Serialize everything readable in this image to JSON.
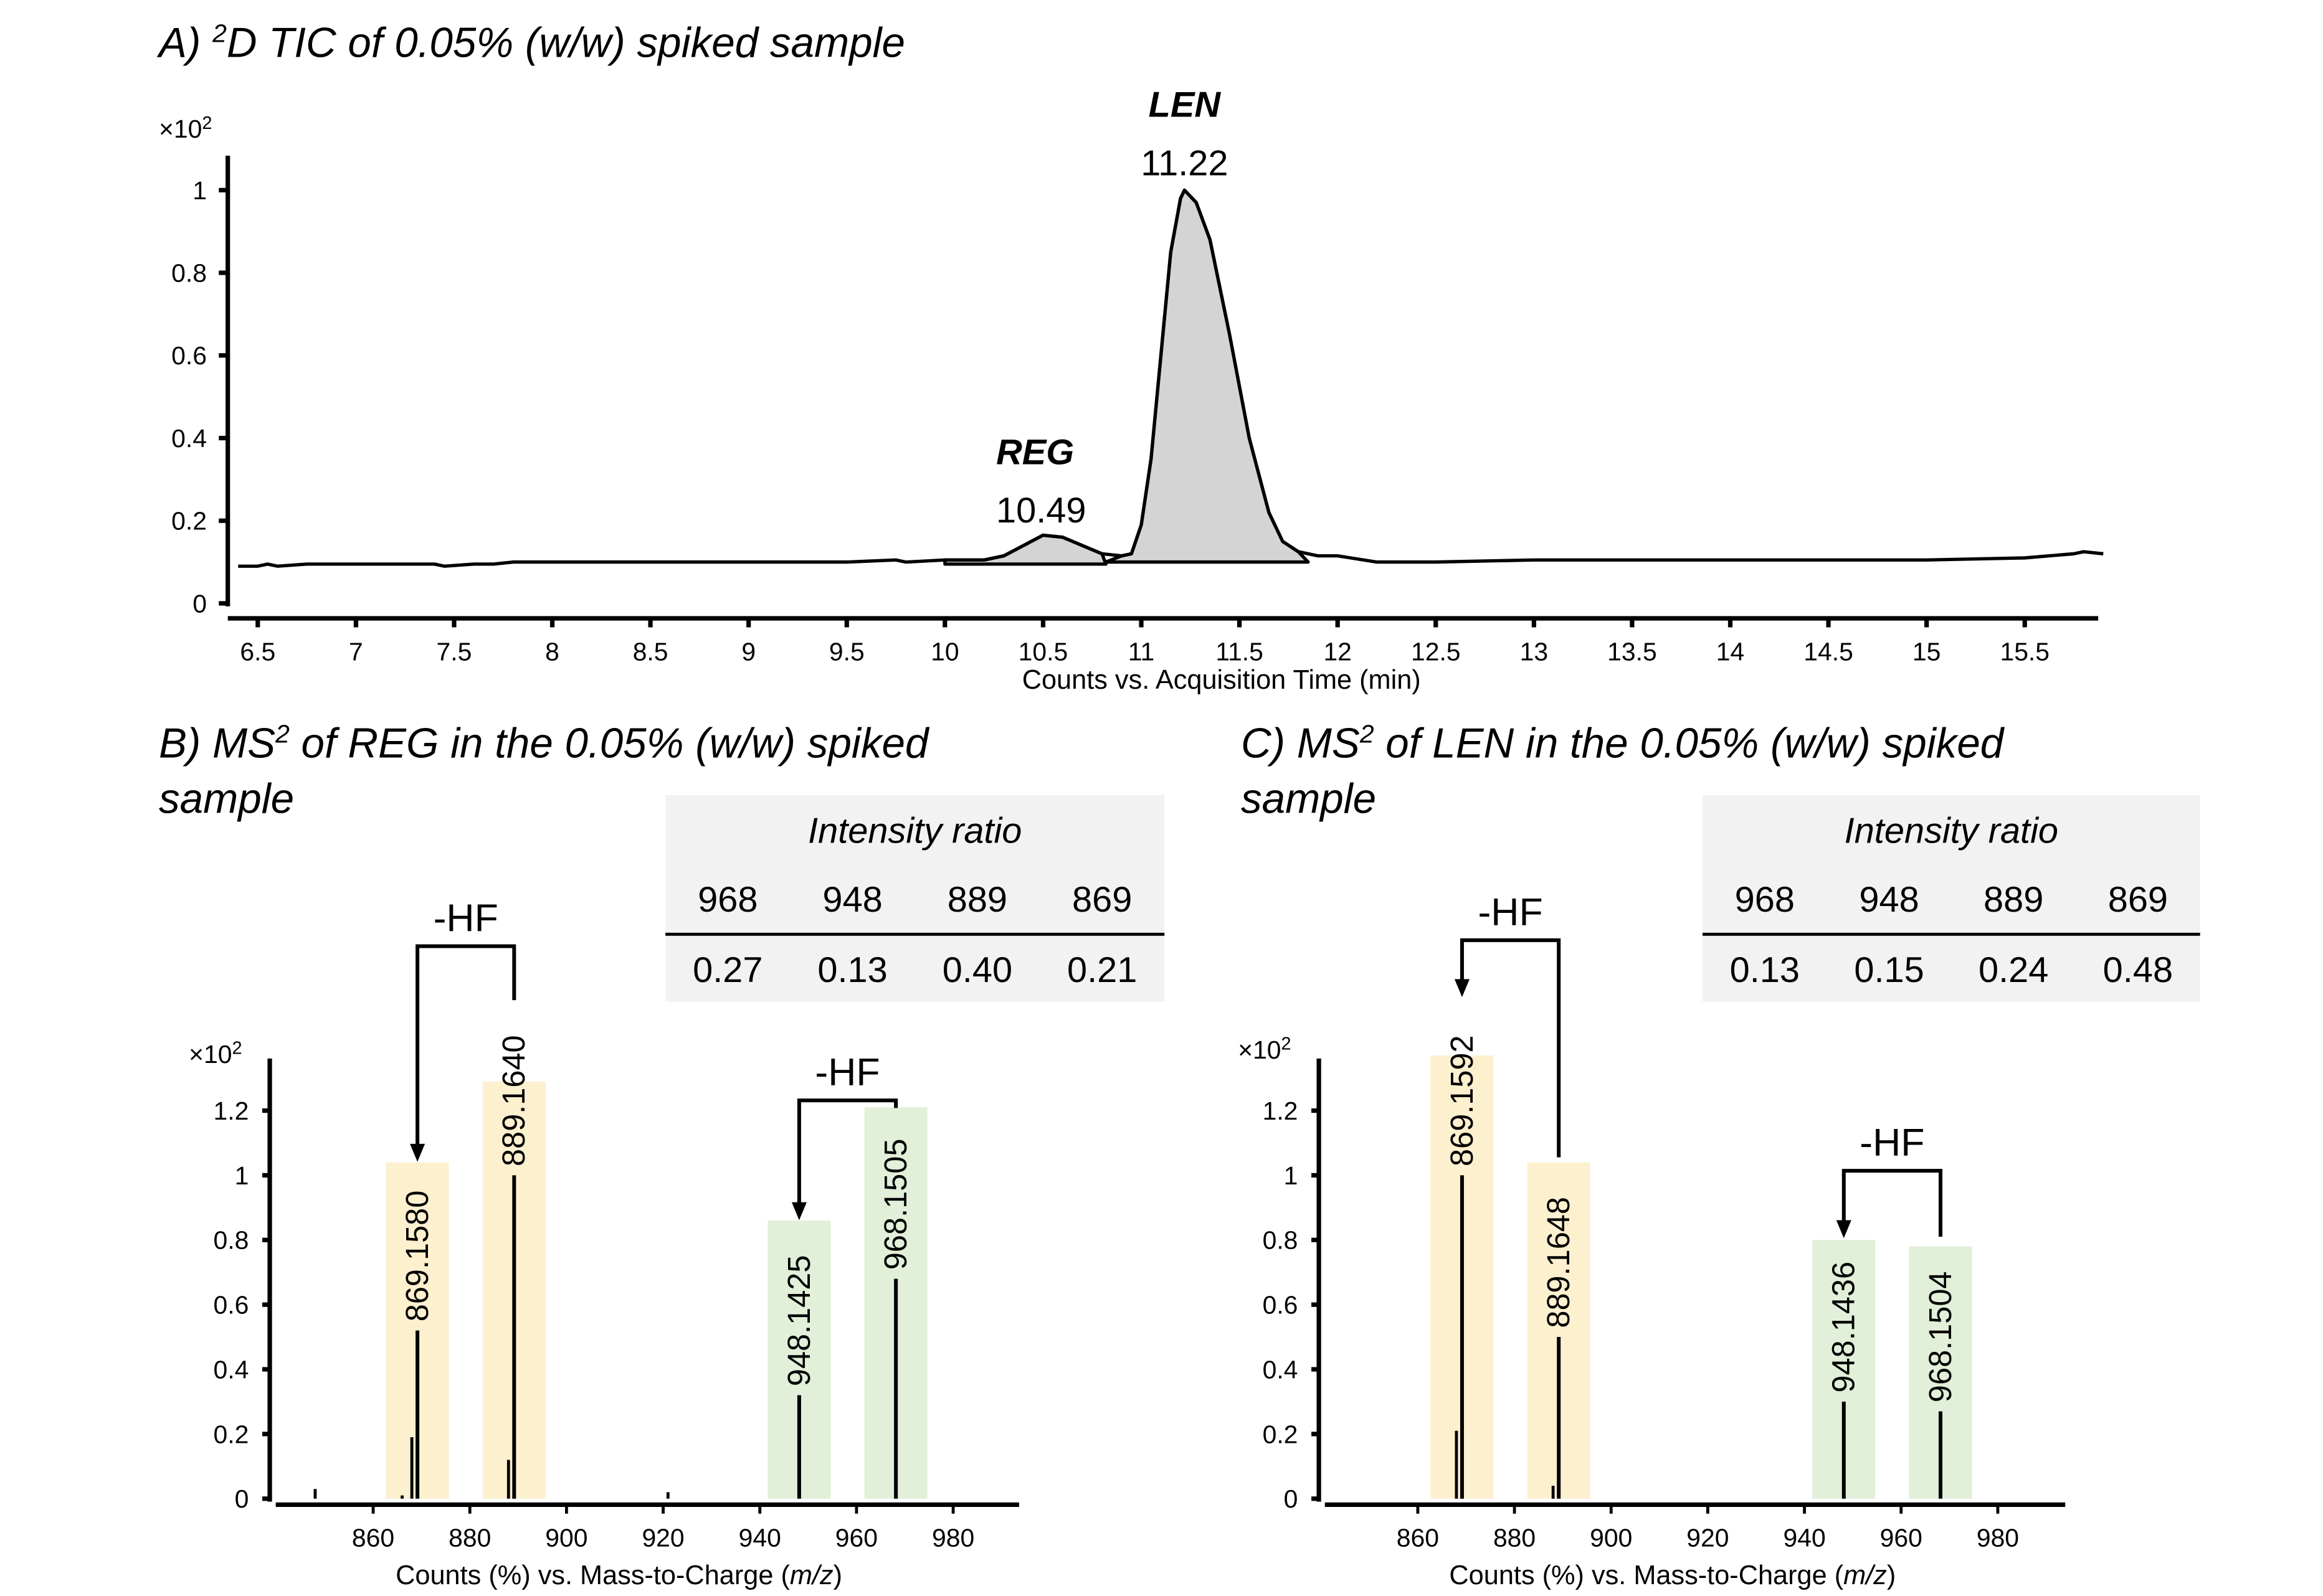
{
  "chart_data": [
    {
      "id": "A",
      "type": "line",
      "title_prefix": "A) ",
      "title_sup": "2",
      "title_rest": "D TIC of 0.05% (w/w) spiked sample",
      "xlabel": "Counts vs. Acquisition Time (min)",
      "ylabel_multiplier": "×10",
      "ylabel_multiplier_exp": "2",
      "xlim": [
        6.4,
        15.9
      ],
      "ylim": [
        0,
        1.05
      ],
      "xticks": [
        "6.5",
        "7",
        "7.5",
        "8",
        "8.5",
        "9",
        "9.5",
        "10",
        "10.5",
        "11",
        "11.5",
        "12",
        "12.5",
        "13",
        "13.5",
        "14",
        "14.5",
        "15",
        "15.5"
      ],
      "yticks": [
        "0",
        "0.2",
        "0.4",
        "0.6",
        "0.8",
        "1"
      ],
      "grid": false,
      "trace": {
        "x": [
          6.4,
          6.5,
          6.55,
          6.6,
          6.75,
          7.0,
          7.4,
          7.45,
          7.6,
          7.7,
          7.8,
          8.0,
          8.5,
          8.9,
          9.0,
          9.2,
          9.5,
          9.75,
          9.8,
          10.0,
          10.2,
          10.3,
          10.4,
          10.5,
          10.6,
          10.7,
          10.8,
          10.9,
          10.95,
          11.0,
          11.05,
          11.1,
          11.15,
          11.2,
          11.22,
          11.28,
          11.35,
          11.45,
          11.55,
          11.65,
          11.72,
          11.8,
          11.9,
          12.0,
          12.2,
          12.5,
          13.0,
          13.5,
          14.0,
          14.5,
          15.0,
          15.5,
          15.75,
          15.8,
          15.9
        ],
        "y": [
          0.09,
          0.09,
          0.095,
          0.09,
          0.095,
          0.095,
          0.095,
          0.09,
          0.095,
          0.095,
          0.1,
          0.1,
          0.1,
          0.1,
          0.1,
          0.1,
          0.1,
          0.105,
          0.1,
          0.105,
          0.105,
          0.115,
          0.14,
          0.165,
          0.16,
          0.14,
          0.12,
          0.115,
          0.12,
          0.19,
          0.35,
          0.6,
          0.85,
          0.98,
          1.0,
          0.97,
          0.88,
          0.65,
          0.4,
          0.22,
          0.15,
          0.125,
          0.115,
          0.115,
          0.1,
          0.1,
          0.105,
          0.105,
          0.105,
          0.105,
          0.105,
          0.11,
          0.12,
          0.125,
          0.12
        ]
      },
      "peaks": [
        {
          "name": "REG",
          "rt": "10.49",
          "x": 10.49,
          "start": 10.0,
          "end": 10.82,
          "base": 0.095,
          "color": "#d4d4d4"
        },
        {
          "name": "LEN",
          "rt": "11.22",
          "x": 11.22,
          "start": 10.82,
          "end": 11.85,
          "base": 0.1,
          "color": "#d4d4d4"
        }
      ]
    },
    {
      "id": "B",
      "type": "bar",
      "title_prefix": "B) MS",
      "title_sup": "2",
      "title_rest": " of REG in the 0.05% (w/w) spiked",
      "title_line2": "sample",
      "xlabel_pre": "Counts (%) vs. Mass-to-Charge (",
      "xlabel_it": "m/z",
      "xlabel_post": ")",
      "ylabel_multiplier": "×10",
      "ylabel_multiplier_exp": "2",
      "xlim": [
        840,
        995
      ],
      "ylim": [
        0,
        1.3
      ],
      "xticks": [
        "860",
        "880",
        "900",
        "920",
        "940",
        "960",
        "980"
      ],
      "yticks": [
        "0",
        "0.2",
        "0.4",
        "0.6",
        "0.8",
        "1",
        "1.2"
      ],
      "peaks": [
        {
          "mz": 848.0,
          "y": 0.03
        },
        {
          "mz": 866.0,
          "y": 0.01
        },
        {
          "mz": 868.0,
          "y": 0.19
        },
        {
          "mz": 869.158,
          "y": 0.52,
          "label": "869.1580",
          "box": "yellow",
          "box_top": 1.04
        },
        {
          "mz": 888.0,
          "y": 0.12
        },
        {
          "mz": 889.164,
          "y": 1.0,
          "label": "889.1640",
          "box": "yellow",
          "box_top": 1.29
        },
        {
          "mz": 921.0,
          "y": 0.02
        },
        {
          "mz": 948.1425,
          "y": 0.32,
          "label": "948.1425",
          "box": "green",
          "box_top": 0.86
        },
        {
          "mz": 968.1505,
          "y": 0.68,
          "label": "968.1505",
          "box": "green",
          "box_top": 1.21
        }
      ],
      "annotations": [
        {
          "text": "-HF",
          "from": 889.164,
          "to": 869.158,
          "bracket_y": 1.49,
          "from_top": 1.29,
          "to_top": 1.04
        },
        {
          "text": "-HF",
          "from": 968.1505,
          "to": 948.1425,
          "bracket_y": 1.23,
          "from_top": 1.21,
          "to_top": 0.86
        }
      ],
      "table": {
        "title": "Intensity ratio",
        "headers": [
          "968",
          "948",
          "889",
          "869"
        ],
        "values": [
          "0.27",
          "0.13",
          "0.40",
          "0.21"
        ]
      }
    },
    {
      "id": "C",
      "type": "bar",
      "title_prefix": "C) MS",
      "title_sup": "2",
      "title_rest": " of LEN in the 0.05% (w/w) spiked",
      "title_line2": "sample",
      "xlabel_pre": "Counts (%) vs. Mass-to-Charge (",
      "xlabel_it": "m/z",
      "xlabel_post": ")",
      "ylabel_multiplier": "×10",
      "ylabel_multiplier_exp": "2",
      "xlim": [
        840,
        995
      ],
      "ylim": [
        0,
        1.3
      ],
      "xticks": [
        "860",
        "880",
        "900",
        "920",
        "940",
        "960",
        "980"
      ],
      "yticks": [
        "0",
        "0.2",
        "0.4",
        "0.6",
        "0.8",
        "1",
        "1.2"
      ],
      "peaks": [
        {
          "mz": 868.0,
          "y": 0.21
        },
        {
          "mz": 869.1592,
          "y": 1.0,
          "label": "869.1592",
          "box": "yellow",
          "box_top": 1.53
        },
        {
          "mz": 888.0,
          "y": 0.04
        },
        {
          "mz": 889.1648,
          "y": 0.5,
          "label": "889.1648",
          "box": "yellow",
          "box_top": 1.04
        },
        {
          "mz": 948.1436,
          "y": 0.3,
          "label": "948.1436",
          "box": "green",
          "box_top": 0.8
        },
        {
          "mz": 968.1504,
          "y": 0.27,
          "label": "968.1504",
          "box": "green",
          "box_top": 0.78
        }
      ],
      "annotations": [
        {
          "text": "-HF",
          "from": 889.1648,
          "to": 869.1592,
          "bracket_y": 1.7,
          "from_top": 1.04,
          "to_top": 1.53
        },
        {
          "text": "-HF",
          "from": 968.1504,
          "to": 948.1436,
          "bracket_y": 1.0,
          "from_top": 0.78,
          "to_top": 0.8
        }
      ],
      "table": {
        "title": "Intensity ratio",
        "headers": [
          "968",
          "948",
          "889",
          "869"
        ],
        "values": [
          "0.13",
          "0.15",
          "0.24",
          "0.48"
        ]
      }
    }
  ],
  "colors": {
    "yellow_box": "#fdf0cf",
    "green_box": "#e2efd9",
    "table_bg": "#f2f2f2",
    "peak_fill": "#d4d4d4",
    "ink": "#000000"
  }
}
